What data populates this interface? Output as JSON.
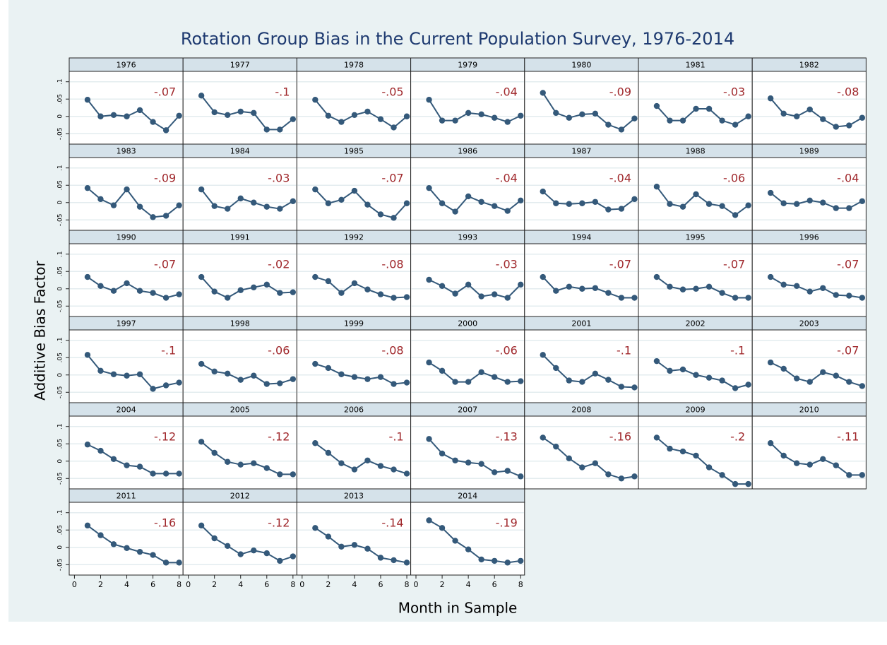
{
  "chart_data": {
    "type": "line",
    "title": "Rotation Group Bias in the Current Population Survey, 1976-2014",
    "x_label": "Month in Sample",
    "y_label": "Additive Bias Factor",
    "color": "#34597a",
    "annotation_color": "#a0282c",
    "x": [
      1,
      2,
      3,
      4,
      5,
      6,
      7,
      8
    ],
    "xlim": [
      -0.4,
      8.3
    ],
    "xticks": [
      0,
      2,
      4,
      6,
      8
    ],
    "ylim": [
      -0.08,
      0.13
    ],
    "yticks": [
      {
        "value": -0.05,
        "label": "-.05"
      },
      0,
      {
        "value": 0.05,
        "label": ".05"
      },
      {
        "value": 0.1,
        "label": ".1"
      }
    ],
    "grid": true,
    "panels": [
      {
        "title": "1976",
        "annotation": "-.07",
        "values": [
          0.048,
          0,
          0.004,
          0,
          0.018,
          -0.016,
          -0.04,
          0.002
        ]
      },
      {
        "title": "1977",
        "annotation": "-.1",
        "values": [
          0.06,
          0.012,
          0.004,
          0.014,
          0.01,
          -0.038,
          -0.038,
          -0.008
        ]
      },
      {
        "title": "1978",
        "annotation": "-.05",
        "values": [
          0.048,
          0.002,
          -0.016,
          0.004,
          0.014,
          -0.008,
          -0.032,
          0
        ]
      },
      {
        "title": "1979",
        "annotation": "-.04",
        "values": [
          0.048,
          -0.012,
          -0.012,
          0.01,
          0.006,
          -0.004,
          -0.016,
          0.002
        ]
      },
      {
        "title": "1980",
        "annotation": "-.09",
        "values": [
          0.068,
          0.01,
          -0.004,
          0.006,
          0.008,
          -0.024,
          -0.038,
          -0.006
        ]
      },
      {
        "title": "1981",
        "annotation": "-.03",
        "values": [
          0.03,
          -0.012,
          -0.012,
          0.022,
          0.022,
          -0.012,
          -0.024,
          0
        ]
      },
      {
        "title": "1982",
        "annotation": "-.08",
        "values": [
          0.052,
          0.008,
          0,
          0.02,
          -0.008,
          -0.03,
          -0.026,
          -0.004
        ]
      },
      {
        "title": "1983",
        "annotation": "-.09",
        "values": [
          0.042,
          0.01,
          -0.008,
          0.038,
          -0.012,
          -0.042,
          -0.038,
          -0.008
        ]
      },
      {
        "title": "1984",
        "annotation": "-.03",
        "values": [
          0.038,
          -0.01,
          -0.018,
          0.012,
          0,
          -0.012,
          -0.018,
          0.004
        ]
      },
      {
        "title": "1985",
        "annotation": "-.07",
        "values": [
          0.038,
          -0.002,
          0.008,
          0.034,
          -0.006,
          -0.034,
          -0.044,
          -0.002
        ]
      },
      {
        "title": "1986",
        "annotation": "-.04",
        "values": [
          0.042,
          -0.002,
          -0.026,
          0.018,
          0.002,
          -0.01,
          -0.024,
          0.006
        ]
      },
      {
        "title": "1987",
        "annotation": "-.04",
        "values": [
          0.032,
          -0.002,
          -0.004,
          -0.002,
          0.002,
          -0.02,
          -0.018,
          0.01
        ]
      },
      {
        "title": "1988",
        "annotation": "-.06",
        "values": [
          0.046,
          -0.004,
          -0.012,
          0.024,
          -0.004,
          -0.01,
          -0.036,
          -0.008
        ]
      },
      {
        "title": "1989",
        "annotation": "-.04",
        "values": [
          0.028,
          -0.002,
          -0.004,
          0.006,
          0,
          -0.016,
          -0.016,
          0.004
        ]
      },
      {
        "title": "1990",
        "annotation": "-.07",
        "values": [
          0.034,
          0.008,
          -0.006,
          0.016,
          -0.006,
          -0.012,
          -0.026,
          -0.016
        ]
      },
      {
        "title": "1991",
        "annotation": "-.02",
        "values": [
          0.034,
          -0.008,
          -0.026,
          -0.004,
          0.004,
          0.012,
          -0.012,
          -0.01
        ]
      },
      {
        "title": "1992",
        "annotation": "-.08",
        "values": [
          0.034,
          0.022,
          -0.012,
          0.016,
          -0.002,
          -0.016,
          -0.026,
          -0.024
        ]
      },
      {
        "title": "1993",
        "annotation": "-.03",
        "values": [
          0.026,
          0.008,
          -0.014,
          0.012,
          -0.022,
          -0.016,
          -0.026,
          0.012
        ]
      },
      {
        "title": "1994",
        "annotation": "-.07",
        "values": [
          0.034,
          -0.006,
          0.006,
          0,
          0.002,
          -0.012,
          -0.026,
          -0.026
        ]
      },
      {
        "title": "1995",
        "annotation": "-.07",
        "values": [
          0.034,
          0.006,
          -0.002,
          0,
          0.006,
          -0.012,
          -0.026,
          -0.026
        ]
      },
      {
        "title": "1996",
        "annotation": "-.07",
        "values": [
          0.034,
          0.012,
          0.008,
          -0.008,
          0.002,
          -0.018,
          -0.02,
          -0.026
        ]
      },
      {
        "title": "1997",
        "annotation": "-.1",
        "values": [
          0.058,
          0.012,
          0.002,
          -0.002,
          0.002,
          -0.04,
          -0.03,
          -0.022
        ]
      },
      {
        "title": "1998",
        "annotation": "-.06",
        "values": [
          0.032,
          0.01,
          0.004,
          -0.014,
          -0.002,
          -0.026,
          -0.024,
          -0.012
        ]
      },
      {
        "title": "1999",
        "annotation": "-.08",
        "values": [
          0.032,
          0.02,
          0.002,
          -0.006,
          -0.012,
          -0.006,
          -0.026,
          -0.022
        ]
      },
      {
        "title": "2000",
        "annotation": "-.06",
        "values": [
          0.036,
          0.012,
          -0.02,
          -0.02,
          0.008,
          -0.006,
          -0.02,
          -0.018
        ]
      },
      {
        "title": "2001",
        "annotation": "-.1",
        "values": [
          0.058,
          0.02,
          -0.016,
          -0.02,
          0.004,
          -0.014,
          -0.034,
          -0.036
        ]
      },
      {
        "title": "2002",
        "annotation": "-.1",
        "values": [
          0.04,
          0.012,
          0.016,
          0,
          -0.008,
          -0.016,
          -0.038,
          -0.028
        ]
      },
      {
        "title": "2003",
        "annotation": "-.07",
        "values": [
          0.036,
          0.018,
          -0.01,
          -0.02,
          0.008,
          -0.002,
          -0.02,
          -0.032
        ]
      },
      {
        "title": "2004",
        "annotation": "-.12",
        "values": [
          0.048,
          0.03,
          0.006,
          -0.012,
          -0.016,
          -0.036,
          -0.036,
          -0.036
        ]
      },
      {
        "title": "2005",
        "annotation": "-.12",
        "values": [
          0.056,
          0.024,
          -0.002,
          -0.01,
          -0.006,
          -0.02,
          -0.038,
          -0.038
        ]
      },
      {
        "title": "2006",
        "annotation": "-.1",
        "values": [
          0.052,
          0.024,
          -0.006,
          -0.024,
          0.002,
          -0.014,
          -0.024,
          -0.036
        ]
      },
      {
        "title": "2007",
        "annotation": "-.13",
        "values": [
          0.064,
          0.022,
          0.002,
          -0.004,
          -0.008,
          -0.032,
          -0.028,
          -0.044
        ]
      },
      {
        "title": "2008",
        "annotation": "-.16",
        "values": [
          0.068,
          0.042,
          0.008,
          -0.018,
          -0.006,
          -0.038,
          -0.05,
          -0.044
        ]
      },
      {
        "title": "2009",
        "annotation": "-.2",
        "values": [
          0.068,
          0.036,
          0.028,
          0.016,
          -0.018,
          -0.04,
          -0.066,
          -0.066
        ]
      },
      {
        "title": "2010",
        "annotation": "-.11",
        "values": [
          0.052,
          0.016,
          -0.006,
          -0.01,
          0.006,
          -0.012,
          -0.04,
          -0.04
        ]
      },
      {
        "title": "2011",
        "annotation": "-.16",
        "values": [
          0.063,
          0.035,
          0.009,
          -0.002,
          -0.013,
          -0.022,
          -0.044,
          -0.044
        ]
      },
      {
        "title": "2012",
        "annotation": "-.12",
        "values": [
          0.063,
          0.026,
          0.004,
          -0.02,
          -0.009,
          -0.017,
          -0.039,
          -0.026
        ]
      },
      {
        "title": "2013",
        "annotation": "-.14",
        "values": [
          0.056,
          0.031,
          0.002,
          0.007,
          -0.004,
          -0.03,
          -0.037,
          -0.044
        ]
      },
      {
        "title": "2014",
        "annotation": "-.19",
        "values": [
          0.078,
          0.056,
          0.019,
          -0.006,
          -0.035,
          -0.039,
          -0.044,
          -0.039
        ]
      }
    ]
  }
}
